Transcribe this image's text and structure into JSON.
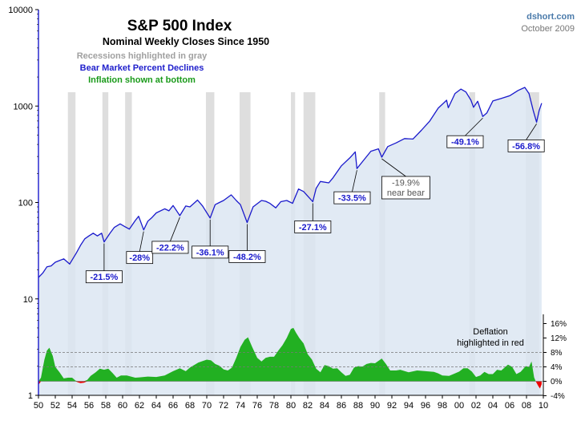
{
  "chart_data": {
    "type": "line",
    "title": "S&P 500 Index",
    "subtitle": "Nominal Weekly Closes Since 1950",
    "notes": [
      {
        "text": "Recessions highlighted in gray",
        "color": "#a0a0a0"
      },
      {
        "text": "Bear Market Percent Declines",
        "color": "#2020cc"
      },
      {
        "text": "Inflation shown at bottom",
        "color": "#1a9a1a"
      }
    ],
    "source": "dshort.com",
    "date": "October 2009",
    "deflation_note": [
      "Deflation",
      "highlighted in red"
    ],
    "y_scale": "log",
    "ylim": [
      1,
      10000
    ],
    "y_ticks": [
      1,
      10,
      100,
      1000,
      10000
    ],
    "y_tick_labels": [
      "1",
      "10",
      "100",
      "1000",
      "10000"
    ],
    "xlim": [
      1950,
      2010
    ],
    "x_ticks": [
      1950,
      1952,
      1954,
      1956,
      1958,
      1960,
      1962,
      1964,
      1966,
      1968,
      1970,
      1972,
      1974,
      1976,
      1978,
      1980,
      1982,
      1984,
      1986,
      1988,
      1990,
      1992,
      1994,
      1996,
      1998,
      2000,
      2002,
      2004,
      2006,
      2008,
      2010
    ],
    "x_tick_labels": [
      "50",
      "52",
      "54",
      "56",
      "58",
      "60",
      "62",
      "64",
      "66",
      "68",
      "70",
      "72",
      "74",
      "76",
      "78",
      "80",
      "82",
      "84",
      "86",
      "88",
      "90",
      "92",
      "94",
      "96",
      "98",
      "00",
      "02",
      "04",
      "06",
      "08",
      "10"
    ],
    "inflation_axis": {
      "ticks": [
        -4,
        0,
        4,
        8,
        12,
        16
      ],
      "tick_labels": [
        "-4%",
        "0%",
        "4%",
        "8%",
        "12%",
        "16%"
      ],
      "dashed_lines": [
        4,
        8
      ]
    },
    "recessions": [
      [
        1953.5,
        1954.4
      ],
      [
        1957.6,
        1958.3
      ],
      [
        1960.3,
        1961.1
      ],
      [
        1969.9,
        1970.9
      ],
      [
        1973.9,
        1975.2
      ],
      [
        1980.0,
        1980.5
      ],
      [
        1981.5,
        1982.9
      ],
      [
        1990.5,
        1991.2
      ],
      [
        2001.2,
        2001.9
      ],
      [
        2007.9,
        2009.5
      ]
    ],
    "series": [
      {
        "name": "S&P 500 Index",
        "color": "#1a1acc",
        "fill": "#dce6f2",
        "points": [
          [
            1950.0,
            16.7
          ],
          [
            1950.5,
            18.5
          ],
          [
            1951.0,
            21.5
          ],
          [
            1951.5,
            22
          ],
          [
            1952.0,
            24
          ],
          [
            1952.5,
            25
          ],
          [
            1953.0,
            26
          ],
          [
            1953.7,
            23
          ],
          [
            1954.5,
            30
          ],
          [
            1955.0,
            36
          ],
          [
            1955.5,
            42
          ],
          [
            1956.0,
            45
          ],
          [
            1956.5,
            48
          ],
          [
            1957.0,
            45
          ],
          [
            1957.5,
            48
          ],
          [
            1957.8,
            39
          ],
          [
            1958.5,
            48
          ],
          [
            1959.0,
            55
          ],
          [
            1959.7,
            60
          ],
          [
            1960.3,
            56
          ],
          [
            1960.8,
            53
          ],
          [
            1961.5,
            65
          ],
          [
            1961.9,
            72
          ],
          [
            1962.5,
            52
          ],
          [
            1963.0,
            64
          ],
          [
            1963.5,
            70
          ],
          [
            1964.0,
            78
          ],
          [
            1965.0,
            86
          ],
          [
            1965.5,
            82
          ],
          [
            1966.0,
            93
          ],
          [
            1966.8,
            73
          ],
          [
            1967.5,
            92
          ],
          [
            1968.0,
            90
          ],
          [
            1968.9,
            106
          ],
          [
            1969.5,
            92
          ],
          [
            1970.4,
            69
          ],
          [
            1971.0,
            95
          ],
          [
            1971.5,
            100
          ],
          [
            1972.0,
            105
          ],
          [
            1972.9,
            120
          ],
          [
            1973.5,
            105
          ],
          [
            1974.0,
            95
          ],
          [
            1974.8,
            62
          ],
          [
            1975.5,
            90
          ],
          [
            1976.5,
            105
          ],
          [
            1977.0,
            103
          ],
          [
            1977.5,
            98
          ],
          [
            1978.2,
            88
          ],
          [
            1978.8,
            102
          ],
          [
            1979.5,
            105
          ],
          [
            1980.2,
            98
          ],
          [
            1980.9,
            138
          ],
          [
            1981.5,
            130
          ],
          [
            1982.6,
            102
          ],
          [
            1983.0,
            140
          ],
          [
            1983.5,
            165
          ],
          [
            1984.5,
            160
          ],
          [
            1985.0,
            180
          ],
          [
            1986.0,
            240
          ],
          [
            1987.0,
            290
          ],
          [
            1987.65,
            335
          ],
          [
            1987.85,
            225
          ],
          [
            1988.5,
            265
          ],
          [
            1989.5,
            340
          ],
          [
            1990.4,
            360
          ],
          [
            1990.8,
            295
          ],
          [
            1991.5,
            380
          ],
          [
            1992.5,
            415
          ],
          [
            1993.5,
            460
          ],
          [
            1994.5,
            455
          ],
          [
            1995.5,
            560
          ],
          [
            1996.5,
            700
          ],
          [
            1997.5,
            950
          ],
          [
            1998.5,
            1150
          ],
          [
            1998.7,
            960
          ],
          [
            1999.5,
            1350
          ],
          [
            2000.2,
            1500
          ],
          [
            2000.8,
            1400
          ],
          [
            2001.4,
            1150
          ],
          [
            2001.7,
            970
          ],
          [
            2002.2,
            1120
          ],
          [
            2002.8,
            780
          ],
          [
            2003.3,
            850
          ],
          [
            2004.0,
            1130
          ],
          [
            2005.0,
            1200
          ],
          [
            2006.0,
            1280
          ],
          [
            2007.0,
            1450
          ],
          [
            2007.8,
            1560
          ],
          [
            2008.3,
            1350
          ],
          [
            2008.8,
            900
          ],
          [
            2009.2,
            680
          ],
          [
            2009.5,
            900
          ],
          [
            2009.8,
            1070
          ]
        ]
      },
      {
        "name": "Inflation",
        "color": "#22b022",
        "negative_color": "#ee0000",
        "points": [
          [
            1950.0,
            -1
          ],
          [
            1950.3,
            1
          ],
          [
            1950.7,
            6
          ],
          [
            1951.0,
            8.5
          ],
          [
            1951.3,
            9.3
          ],
          [
            1951.7,
            7
          ],
          [
            1952.0,
            4
          ],
          [
            1952.5,
            2.5
          ],
          [
            1953.0,
            0.8
          ],
          [
            1953.5,
            1
          ],
          [
            1954.0,
            1
          ],
          [
            1954.4,
            0.2
          ],
          [
            1954.7,
            -0.3
          ],
          [
            1955.0,
            -0.5
          ],
          [
            1955.4,
            -0.4
          ],
          [
            1955.8,
            0.4
          ],
          [
            1956.2,
            1.5
          ],
          [
            1956.8,
            2.5
          ],
          [
            1957.3,
            3.5
          ],
          [
            1957.8,
            3.2
          ],
          [
            1958.3,
            3.5
          ],
          [
            1958.8,
            2.3
          ],
          [
            1959.3,
            1
          ],
          [
            1959.8,
            1.6
          ],
          [
            1960.5,
            1.6
          ],
          [
            1961.0,
            1.3
          ],
          [
            1961.5,
            1
          ],
          [
            1962.0,
            1.1
          ],
          [
            1963.0,
            1.3
          ],
          [
            1964.0,
            1.2
          ],
          [
            1965.0,
            1.6
          ],
          [
            1966.0,
            2.8
          ],
          [
            1966.8,
            3.6
          ],
          [
            1967.5,
            2.8
          ],
          [
            1968.0,
            3.8
          ],
          [
            1969.0,
            5.2
          ],
          [
            1970.0,
            6.0
          ],
          [
            1970.5,
            5.8
          ],
          [
            1971.0,
            4.8
          ],
          [
            1971.5,
            4.3
          ],
          [
            1972.0,
            3.3
          ],
          [
            1972.5,
            3.0
          ],
          [
            1973.0,
            3.8
          ],
          [
            1973.5,
            6.5
          ],
          [
            1974.0,
            9.5
          ],
          [
            1974.5,
            11.5
          ],
          [
            1974.9,
            12.2
          ],
          [
            1975.4,
            9.5
          ],
          [
            1976.0,
            6.5
          ],
          [
            1976.5,
            5.5
          ],
          [
            1977.0,
            6.5
          ],
          [
            1977.5,
            6.8
          ],
          [
            1978.0,
            6.8
          ],
          [
            1978.5,
            8.5
          ],
          [
            1979.0,
            10
          ],
          [
            1979.5,
            12
          ],
          [
            1980.0,
            14.5
          ],
          [
            1980.3,
            14.8
          ],
          [
            1980.6,
            13.5
          ],
          [
            1981.0,
            12
          ],
          [
            1981.5,
            10.5
          ],
          [
            1982.0,
            7.5
          ],
          [
            1982.5,
            6
          ],
          [
            1983.0,
            3.5
          ],
          [
            1983.5,
            2.5
          ],
          [
            1984.0,
            4.5
          ],
          [
            1984.5,
            4.2
          ],
          [
            1985.0,
            3.5
          ],
          [
            1985.5,
            3.6
          ],
          [
            1986.0,
            2.5
          ],
          [
            1986.5,
            1.5
          ],
          [
            1987.0,
            1.8
          ],
          [
            1987.5,
            3.8
          ],
          [
            1988.0,
            4.2
          ],
          [
            1988.5,
            4.1
          ],
          [
            1989.0,
            4.8
          ],
          [
            1989.5,
            5.1
          ],
          [
            1990.0,
            5.0
          ],
          [
            1990.8,
            6.3
          ],
          [
            1991.3,
            4.8
          ],
          [
            1991.8,
            3.0
          ],
          [
            1992.5,
            3.0
          ],
          [
            1993.0,
            3.2
          ],
          [
            1994.0,
            2.5
          ],
          [
            1995.0,
            3.0
          ],
          [
            1996.0,
            2.8
          ],
          [
            1997.0,
            2.6
          ],
          [
            1997.5,
            2.2
          ],
          [
            1998.0,
            1.6
          ],
          [
            1998.8,
            1.5
          ],
          [
            1999.5,
            2.2
          ],
          [
            2000.0,
            2.7
          ],
          [
            2000.5,
            3.6
          ],
          [
            2001.0,
            3.6
          ],
          [
            2001.5,
            2.7
          ],
          [
            2002.0,
            1.2
          ],
          [
            2002.5,
            1.6
          ],
          [
            2003.0,
            2.6
          ],
          [
            2003.5,
            2.0
          ],
          [
            2004.0,
            2.0
          ],
          [
            2004.5,
            3.2
          ],
          [
            2005.0,
            3.0
          ],
          [
            2005.8,
            4.6
          ],
          [
            2006.3,
            4.0
          ],
          [
            2006.8,
            2.0
          ],
          [
            2007.3,
            2.6
          ],
          [
            2007.9,
            4.2
          ],
          [
            2008.3,
            4.0
          ],
          [
            2008.6,
            5.5
          ],
          [
            2008.9,
            1.1
          ],
          [
            2009.1,
            0
          ],
          [
            2009.4,
            -1.3
          ],
          [
            2009.6,
            -2.0
          ],
          [
            2009.8,
            -0.8
          ]
        ]
      }
    ],
    "annotations": [
      {
        "label": "-21.5%",
        "at": [
          1957.8,
          39
        ]
      },
      {
        "label": "-28%",
        "at": [
          1962.5,
          52
        ]
      },
      {
        "label": "-22.2%",
        "at": [
          1966.8,
          73
        ]
      },
      {
        "label": "-36.1%",
        "at": [
          1970.4,
          69
        ]
      },
      {
        "label": "-48.2%",
        "at": [
          1974.8,
          62
        ]
      },
      {
        "label": "-27.1%",
        "at": [
          1982.6,
          102
        ]
      },
      {
        "label": "-33.5%",
        "at": [
          1987.85,
          225
        ]
      },
      {
        "label": "-19.9%",
        "sublabel": "near bear",
        "at": [
          1990.8,
          295
        ]
      },
      {
        "label": "-49.1%",
        "at": [
          2002.8,
          780
        ]
      },
      {
        "label": "-56.8%",
        "at": [
          2009.2,
          680
        ]
      }
    ]
  }
}
